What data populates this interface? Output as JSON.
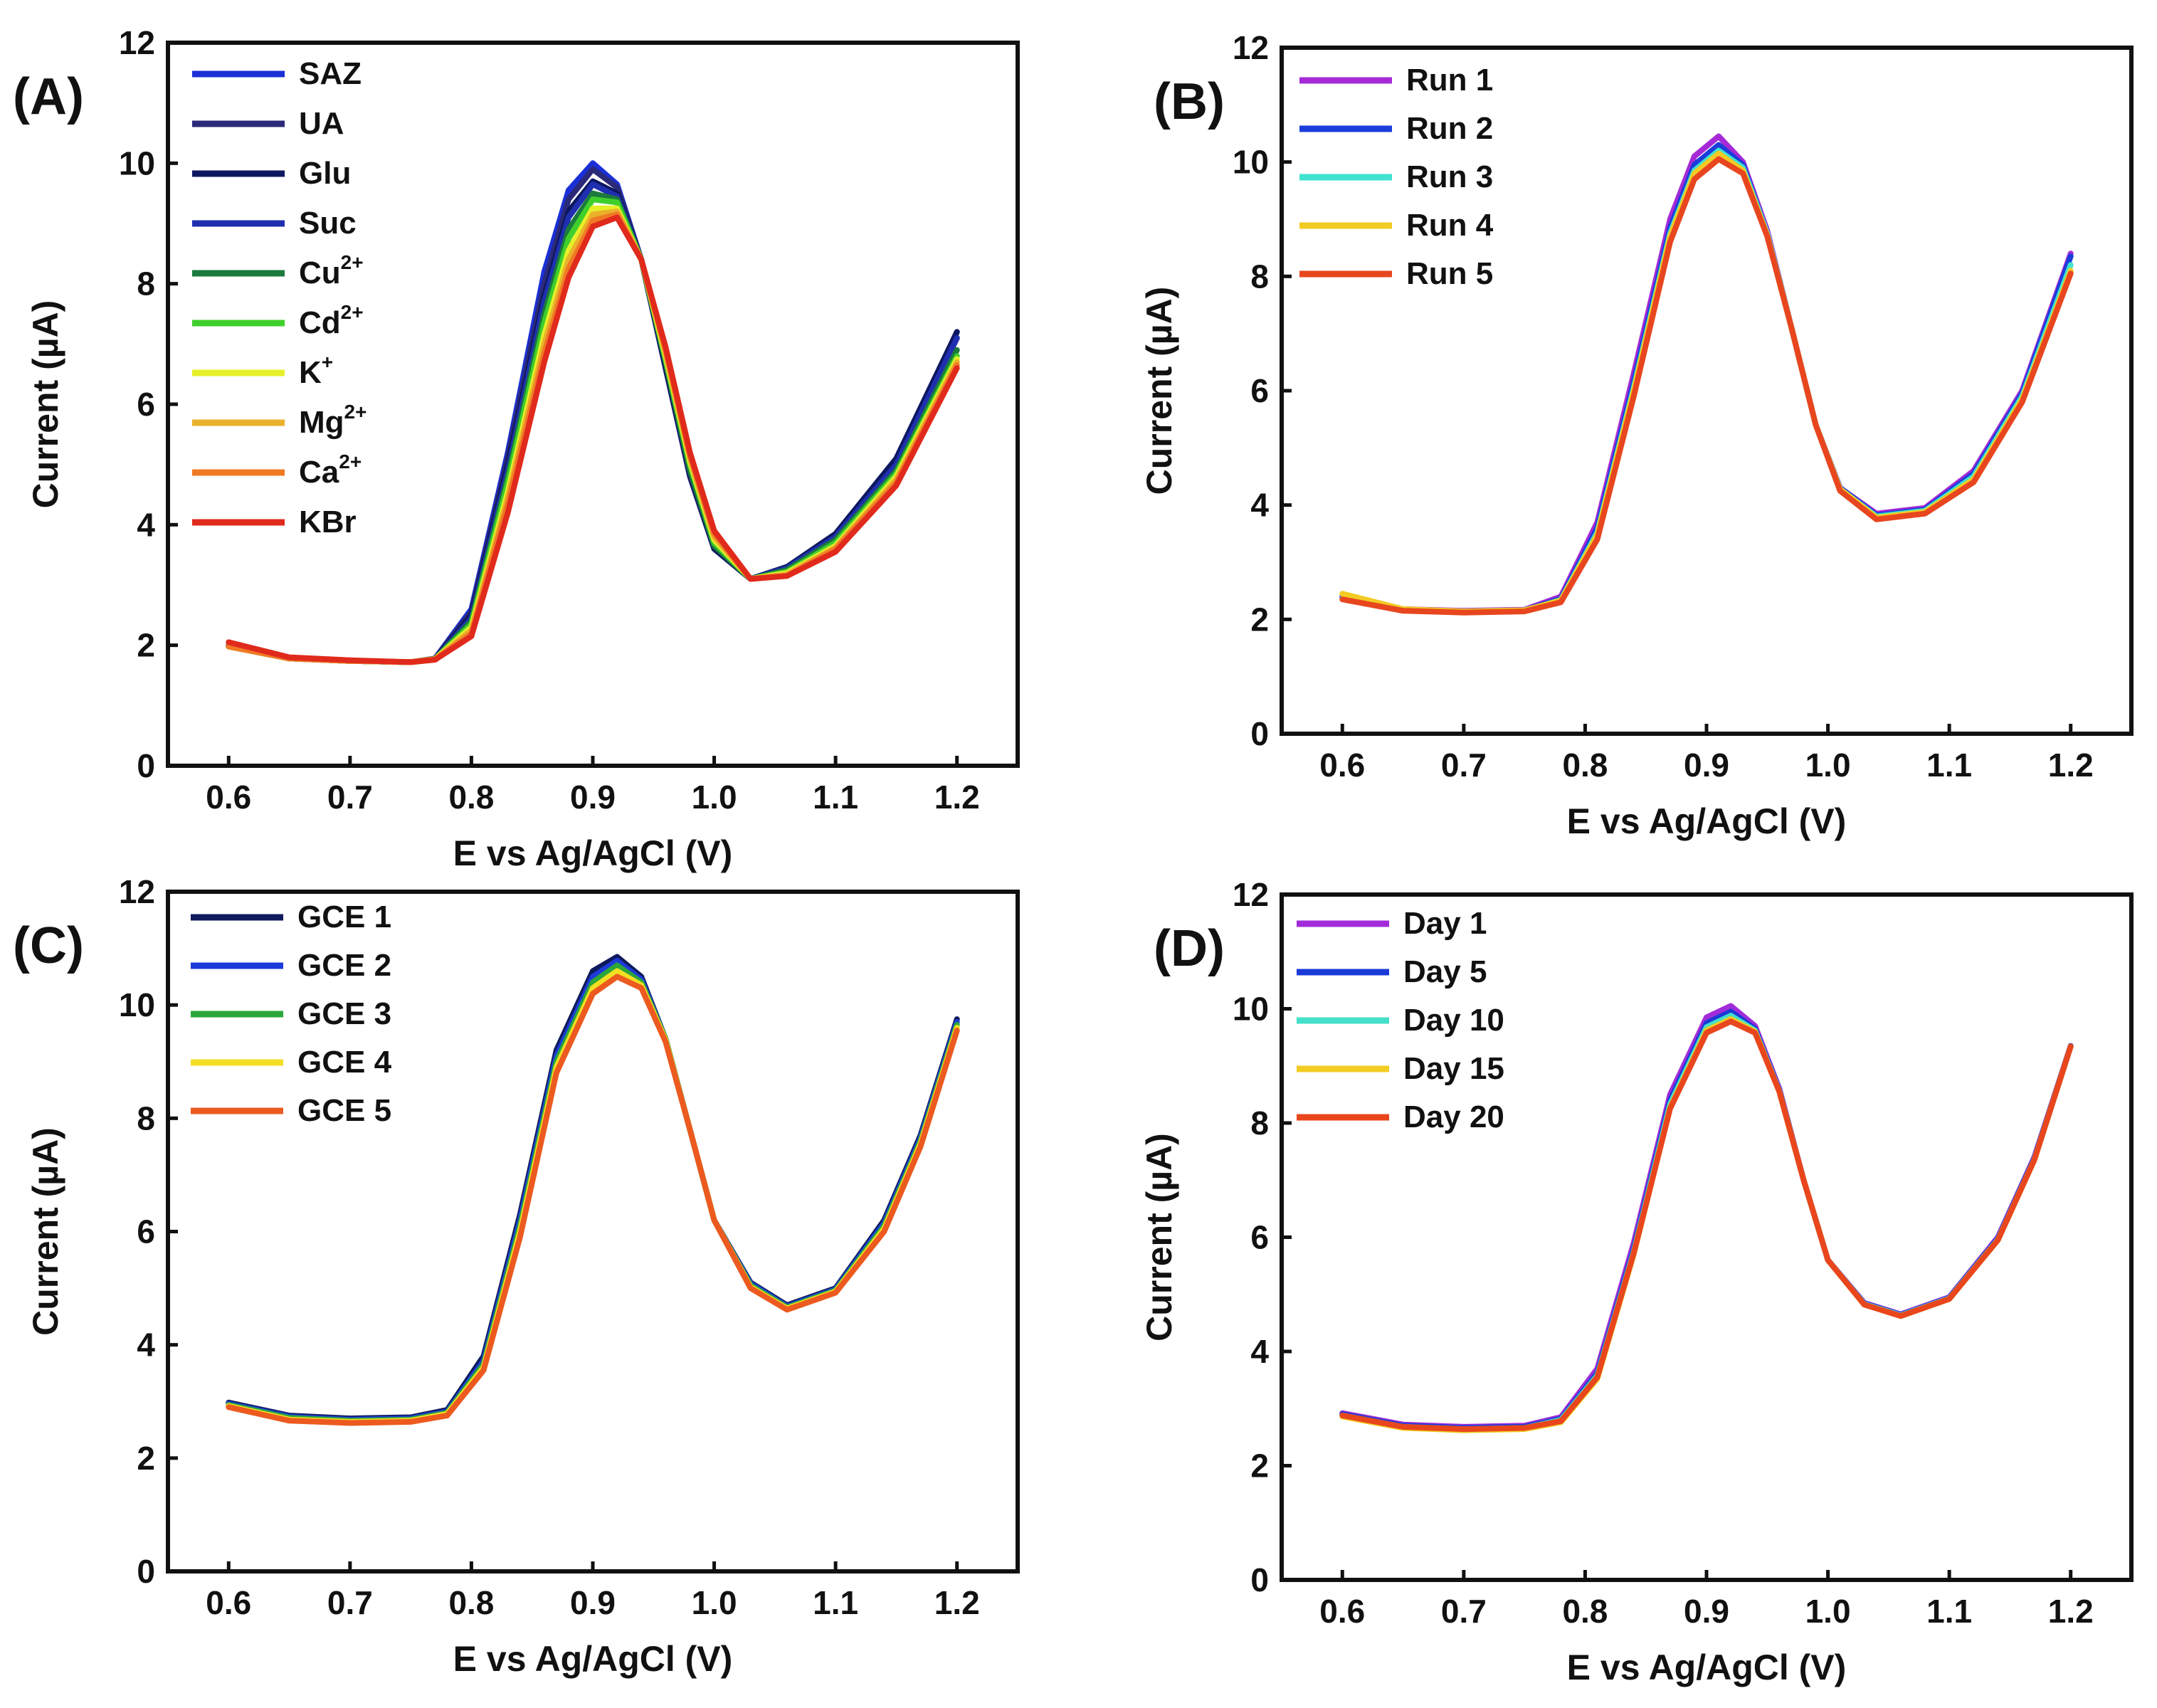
{
  "chart_data": [
    {
      "type": "line",
      "panel_label": "(A)",
      "xlabel": "E vs Ag/AgCl (V)",
      "ylabel": "Current (µA)",
      "xlim": [
        0.55,
        1.25
      ],
      "ylim": [
        0,
        12
      ],
      "xticks": [
        0.6,
        0.7,
        0.8,
        0.9,
        1.0,
        1.1,
        1.2
      ],
      "xtick_labels": [
        "0.6",
        "0.7",
        "0.8",
        "0.9",
        "1.0",
        "1.1",
        "1.2"
      ],
      "yticks": [
        0,
        2,
        4,
        6,
        8,
        10,
        12
      ],
      "ytick_labels": [
        "0",
        "2",
        "4",
        "6",
        "8",
        "10",
        "12"
      ],
      "legend": "top-left",
      "x": [
        0.6,
        0.65,
        0.7,
        0.75,
        0.77,
        0.8,
        0.83,
        0.86,
        0.88,
        0.9,
        0.92,
        0.94,
        0.96,
        0.98,
        1.0,
        1.03,
        1.06,
        1.1,
        1.15,
        1.2
      ],
      "series": [
        {
          "name": "SAZ",
          "sup": "",
          "color": "#1a2fd6",
          "values": [
            2.0,
            1.78,
            1.74,
            1.72,
            1.78,
            2.6,
            5.2,
            8.2,
            9.55,
            10.0,
            9.65,
            8.4,
            6.6,
            4.8,
            3.6,
            3.1,
            3.3,
            3.8,
            5.0,
            7.1
          ]
        },
        {
          "name": "UA",
          "sup": "",
          "color": "#2b2a78",
          "values": [
            1.98,
            1.78,
            1.74,
            1.72,
            1.78,
            2.55,
            5.1,
            8.0,
            9.4,
            9.9,
            9.6,
            8.4,
            6.6,
            4.8,
            3.6,
            3.1,
            3.3,
            3.8,
            5.0,
            7.2
          ]
        },
        {
          "name": "Glu",
          "sup": "",
          "color": "#0d1760",
          "values": [
            1.98,
            1.78,
            1.74,
            1.72,
            1.77,
            2.5,
            5.0,
            7.8,
            9.2,
            9.7,
            9.5,
            8.4,
            6.6,
            4.85,
            3.6,
            3.1,
            3.3,
            3.85,
            5.1,
            7.2
          ]
        },
        {
          "name": "Suc",
          "sup": "",
          "color": "#1f2fb0",
          "values": [
            1.98,
            1.78,
            1.74,
            1.72,
            1.77,
            2.45,
            4.9,
            7.7,
            9.1,
            9.65,
            9.45,
            8.4,
            6.7,
            4.9,
            3.65,
            3.1,
            3.28,
            3.8,
            5.0,
            7.1
          ]
        },
        {
          "name": "Cu",
          "sup": "2+",
          "color": "#1b7a3c",
          "values": [
            1.98,
            1.78,
            1.74,
            1.72,
            1.77,
            2.4,
            4.8,
            7.5,
            8.9,
            9.5,
            9.4,
            8.4,
            6.7,
            4.9,
            3.65,
            3.1,
            3.25,
            3.75,
            4.9,
            6.9
          ]
        },
        {
          "name": "Cd",
          "sup": "2+",
          "color": "#3fcf2c",
          "values": [
            1.98,
            1.78,
            1.74,
            1.72,
            1.77,
            2.35,
            4.7,
            7.35,
            8.75,
            9.4,
            9.35,
            8.4,
            6.75,
            5.0,
            3.7,
            3.1,
            3.22,
            3.7,
            4.85,
            6.8
          ]
        },
        {
          "name": "K",
          "sup": "+",
          "color": "#e6f028",
          "values": [
            1.98,
            1.78,
            1.74,
            1.72,
            1.77,
            2.3,
            4.55,
            7.15,
            8.55,
            9.25,
            9.25,
            8.4,
            6.8,
            5.05,
            3.75,
            3.1,
            3.2,
            3.65,
            4.8,
            6.75
          ]
        },
        {
          "name": "Mg",
          "sup": "2+",
          "color": "#e9b22a",
          "values": [
            1.98,
            1.78,
            1.74,
            1.72,
            1.77,
            2.25,
            4.45,
            7.0,
            8.4,
            9.15,
            9.2,
            8.4,
            6.85,
            5.1,
            3.8,
            3.1,
            3.18,
            3.62,
            4.75,
            6.7
          ]
        },
        {
          "name": "Ca",
          "sup": "2+",
          "color": "#f07a24",
          "values": [
            1.98,
            1.78,
            1.74,
            1.72,
            1.76,
            2.2,
            4.35,
            6.85,
            8.25,
            9.05,
            9.15,
            8.4,
            6.9,
            5.15,
            3.85,
            3.1,
            3.15,
            3.6,
            4.7,
            6.65
          ]
        },
        {
          "name": "KBr",
          "sup": "",
          "color": "#e02a1c",
          "values": [
            2.05,
            1.8,
            1.75,
            1.72,
            1.76,
            2.15,
            4.2,
            6.7,
            8.1,
            8.95,
            9.1,
            8.4,
            6.95,
            5.2,
            3.9,
            3.1,
            3.15,
            3.55,
            4.65,
            6.6
          ]
        }
      ]
    },
    {
      "type": "line",
      "panel_label": "(B)",
      "xlabel": "E vs Ag/AgCl (V)",
      "ylabel": "Current (µA)",
      "xlim": [
        0.55,
        1.25
      ],
      "ylim": [
        0,
        12
      ],
      "xticks": [
        0.6,
        0.7,
        0.8,
        0.9,
        1.0,
        1.1,
        1.2
      ],
      "xtick_labels": [
        "0.6",
        "0.7",
        "0.8",
        "0.9",
        "1.0",
        "1.1",
        "1.2"
      ],
      "yticks": [
        0,
        2,
        4,
        6,
        8,
        10,
        12
      ],
      "ytick_labels": [
        "0",
        "2",
        "4",
        "6",
        "8",
        "10",
        "12"
      ],
      "legend": "top-left",
      "x": [
        0.6,
        0.65,
        0.7,
        0.75,
        0.78,
        0.81,
        0.84,
        0.87,
        0.89,
        0.91,
        0.93,
        0.95,
        0.97,
        0.99,
        1.01,
        1.04,
        1.08,
        1.12,
        1.16,
        1.2
      ],
      "series": [
        {
          "name": "Run 1",
          "sup": "",
          "color": "#a52ad6",
          "values": [
            2.4,
            2.18,
            2.15,
            2.17,
            2.4,
            3.7,
            6.3,
            9.0,
            10.1,
            10.45,
            10.0,
            8.8,
            7.1,
            5.4,
            4.3,
            3.85,
            3.95,
            4.6,
            6.0,
            8.4
          ]
        },
        {
          "name": "Run 2",
          "sup": "",
          "color": "#1a3ddb",
          "values": [
            2.38,
            2.17,
            2.14,
            2.16,
            2.36,
            3.6,
            6.15,
            8.85,
            9.95,
            10.3,
            9.95,
            8.75,
            7.1,
            5.4,
            4.3,
            3.82,
            3.92,
            4.55,
            5.95,
            8.35
          ]
        },
        {
          "name": "Run 3",
          "sup": "",
          "color": "#3fe3cf",
          "values": [
            2.36,
            2.16,
            2.13,
            2.15,
            2.34,
            3.52,
            6.05,
            8.75,
            9.85,
            10.2,
            9.9,
            8.75,
            7.1,
            5.4,
            4.28,
            3.8,
            3.9,
            4.5,
            5.9,
            8.2
          ]
        },
        {
          "name": "Run 4",
          "sup": "",
          "color": "#f2cb24",
          "values": [
            2.45,
            2.18,
            2.14,
            2.16,
            2.33,
            3.48,
            6.0,
            8.7,
            9.8,
            10.15,
            9.85,
            8.72,
            7.1,
            5.4,
            4.28,
            3.78,
            3.88,
            4.45,
            5.85,
            8.1
          ]
        },
        {
          "name": "Run 5",
          "sup": "",
          "color": "#e8461e",
          "values": [
            2.35,
            2.15,
            2.12,
            2.14,
            2.3,
            3.4,
            5.9,
            8.6,
            9.7,
            10.05,
            9.8,
            8.7,
            7.1,
            5.4,
            4.25,
            3.75,
            3.85,
            4.4,
            5.8,
            8.05
          ]
        }
      ]
    },
    {
      "type": "line",
      "panel_label": "(C)",
      "xlabel": "E vs Ag/AgCl (V)",
      "ylabel": "Current (µA)",
      "xlim": [
        0.55,
        1.25
      ],
      "ylim": [
        0,
        12
      ],
      "xticks": [
        0.6,
        0.7,
        0.8,
        0.9,
        1.0,
        1.1,
        1.2
      ],
      "xtick_labels": [
        "0.6",
        "0.7",
        "0.8",
        "0.9",
        "1.0",
        "1.1",
        "1.2"
      ],
      "yticks": [
        0,
        2,
        4,
        6,
        8,
        10,
        12
      ],
      "ytick_labels": [
        "0",
        "2",
        "4",
        "6",
        "8",
        "10",
        "12"
      ],
      "legend": "top-left",
      "x": [
        0.6,
        0.65,
        0.7,
        0.75,
        0.78,
        0.81,
        0.84,
        0.87,
        0.9,
        0.92,
        0.94,
        0.96,
        0.98,
        1.0,
        1.03,
        1.06,
        1.1,
        1.14,
        1.17,
        1.2
      ],
      "series": [
        {
          "name": "GCE 1",
          "sup": "",
          "color": "#0e1a5c",
          "values": [
            2.98,
            2.75,
            2.7,
            2.72,
            2.85,
            3.8,
            6.3,
            9.2,
            10.6,
            10.85,
            10.5,
            9.4,
            7.8,
            6.2,
            5.1,
            4.7,
            5.0,
            6.2,
            7.7,
            9.75
          ]
        },
        {
          "name": "GCE 2",
          "sup": "",
          "color": "#1d3bd8",
          "values": [
            2.96,
            2.73,
            2.68,
            2.7,
            2.82,
            3.72,
            6.2,
            9.1,
            10.5,
            10.78,
            10.45,
            9.4,
            7.8,
            6.2,
            5.08,
            4.68,
            4.98,
            6.15,
            7.65,
            9.7
          ]
        },
        {
          "name": "GCE 3",
          "sup": "",
          "color": "#2aa63a",
          "values": [
            2.94,
            2.71,
            2.66,
            2.68,
            2.8,
            3.66,
            6.1,
            9.0,
            10.4,
            10.7,
            10.4,
            9.4,
            7.8,
            6.2,
            5.05,
            4.66,
            4.96,
            6.1,
            7.6,
            9.65
          ]
        },
        {
          "name": "GCE 4",
          "sup": "",
          "color": "#f2df22",
          "values": [
            2.92,
            2.68,
            2.64,
            2.66,
            2.78,
            3.6,
            6.0,
            8.9,
            10.3,
            10.6,
            10.35,
            9.38,
            7.8,
            6.2,
            5.02,
            4.64,
            4.94,
            6.05,
            7.55,
            9.6
          ]
        },
        {
          "name": "GCE 5",
          "sup": "",
          "color": "#ec5a1f",
          "values": [
            2.9,
            2.66,
            2.62,
            2.64,
            2.75,
            3.55,
            5.9,
            8.8,
            10.2,
            10.5,
            10.3,
            9.35,
            7.8,
            6.2,
            5.0,
            4.62,
            4.92,
            6.0,
            7.5,
            9.55
          ]
        }
      ]
    },
    {
      "type": "line",
      "panel_label": "(D)",
      "xlabel": "E vs Ag/AgCl (V)",
      "ylabel": "Current (µA)",
      "xlim": [
        0.55,
        1.25
      ],
      "ylim": [
        0,
        12
      ],
      "xticks": [
        0.6,
        0.7,
        0.8,
        0.9,
        1.0,
        1.1,
        1.2
      ],
      "xtick_labels": [
        "0.6",
        "0.7",
        "0.8",
        "0.9",
        "1.0",
        "1.1",
        "1.2"
      ],
      "yticks": [
        0,
        2,
        4,
        6,
        8,
        10,
        12
      ],
      "ytick_labels": [
        "0",
        "2",
        "4",
        "6",
        "8",
        "10",
        "12"
      ],
      "legend": "top-left",
      "x": [
        0.6,
        0.65,
        0.7,
        0.75,
        0.78,
        0.81,
        0.84,
        0.87,
        0.9,
        0.92,
        0.94,
        0.96,
        0.98,
        1.0,
        1.03,
        1.06,
        1.1,
        1.14,
        1.17,
        1.2
      ],
      "series": [
        {
          "name": "Day 1",
          "sup": "",
          "color": "#a22cd9",
          "values": [
            2.92,
            2.72,
            2.68,
            2.7,
            2.85,
            3.7,
            5.9,
            8.5,
            9.85,
            10.05,
            9.7,
            8.6,
            7.0,
            5.6,
            4.85,
            4.65,
            4.95,
            6.0,
            7.4,
            9.35
          ]
        },
        {
          "name": "Day 5",
          "sup": "",
          "color": "#1a3ad8",
          "values": [
            2.9,
            2.7,
            2.66,
            2.68,
            2.82,
            3.62,
            5.8,
            8.4,
            9.75,
            9.95,
            9.65,
            8.58,
            7.0,
            5.6,
            4.84,
            4.64,
            4.94,
            5.98,
            7.38,
            9.35
          ]
        },
        {
          "name": "Day 10",
          "sup": "",
          "color": "#45e0c9",
          "values": [
            2.88,
            2.68,
            2.64,
            2.66,
            2.8,
            3.58,
            5.75,
            8.33,
            9.68,
            9.88,
            9.62,
            8.56,
            7.0,
            5.6,
            4.83,
            4.63,
            4.93,
            5.96,
            7.36,
            9.34
          ]
        },
        {
          "name": "Day 15",
          "sup": "",
          "color": "#f2cc22",
          "values": [
            2.86,
            2.66,
            2.62,
            2.64,
            2.76,
            3.52,
            5.7,
            8.27,
            9.62,
            9.82,
            9.6,
            8.55,
            7.0,
            5.6,
            4.82,
            4.62,
            4.92,
            5.95,
            7.35,
            9.34
          ]
        },
        {
          "name": "Day 20",
          "sup": "",
          "color": "#e9461d",
          "values": [
            2.88,
            2.68,
            2.64,
            2.66,
            2.78,
            3.55,
            5.72,
            8.25,
            9.58,
            9.78,
            9.58,
            8.55,
            7.0,
            5.6,
            4.82,
            4.62,
            4.92,
            5.95,
            7.35,
            9.34
          ]
        }
      ]
    }
  ]
}
